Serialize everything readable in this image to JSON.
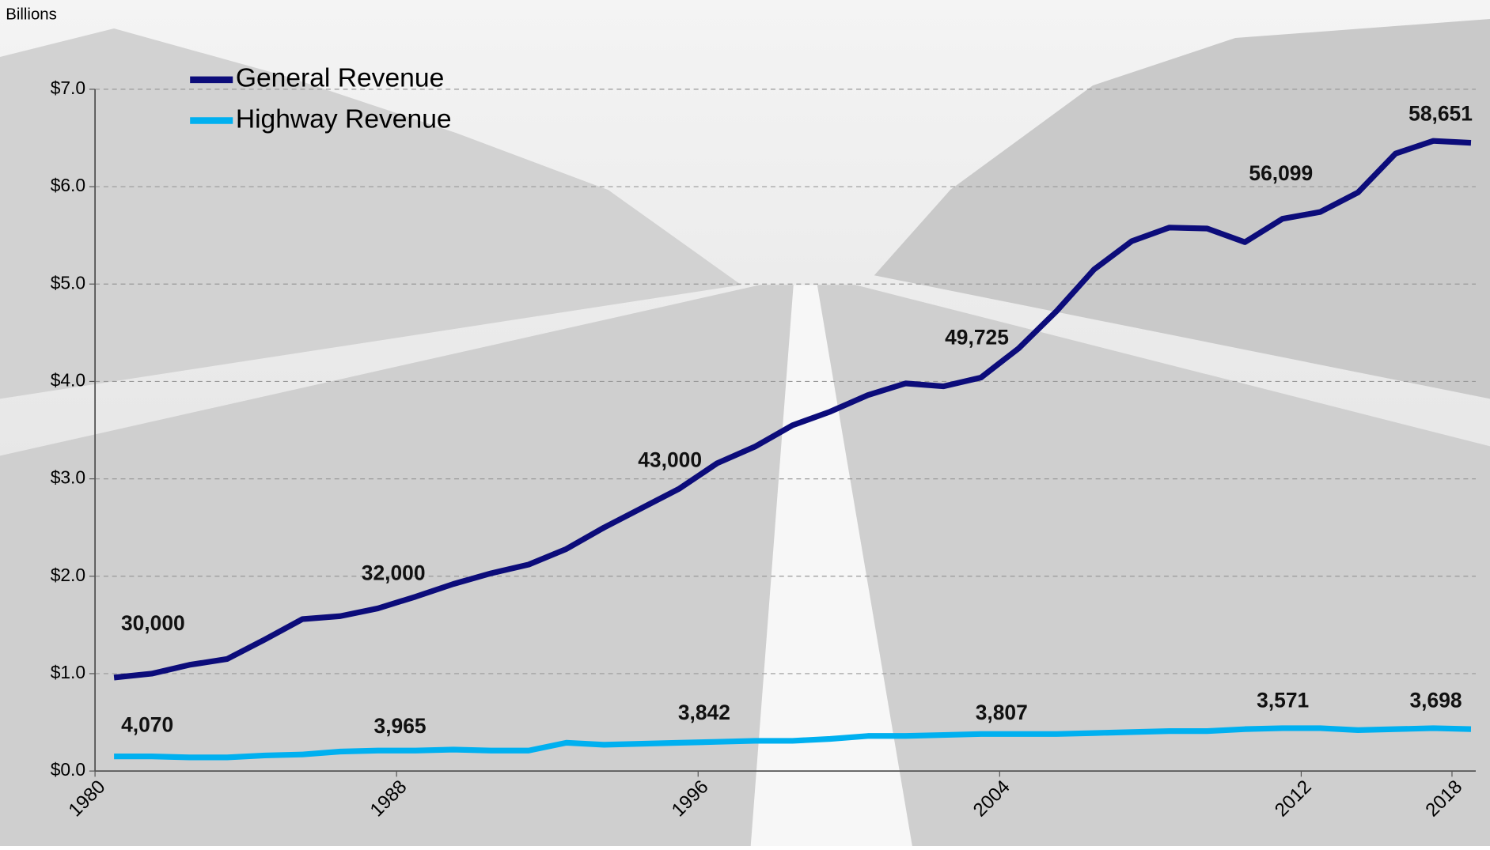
{
  "chart_data": {
    "type": "line",
    "y_axis_label": "Billions",
    "categories": [
      "1980",
      null,
      null,
      null,
      null,
      null,
      null,
      null,
      "1988",
      null,
      null,
      null,
      null,
      null,
      null,
      null,
      "1996",
      null,
      null,
      null,
      null,
      null,
      null,
      null,
      "2004",
      null,
      null,
      null,
      null,
      null,
      null,
      null,
      "2012",
      null,
      null,
      null,
      "2018"
    ],
    "series": [
      {
        "name": "General Revenue",
        "color": "#0c0c7a",
        "values": [
          0.96,
          1.0,
          1.09,
          1.15,
          1.35,
          1.56,
          1.59,
          1.67,
          1.79,
          1.92,
          2.03,
          2.12,
          2.28,
          2.5,
          2.7,
          2.9,
          3.16,
          3.33,
          3.55,
          3.69,
          3.86,
          3.98,
          3.95,
          4.04,
          4.34,
          4.72,
          5.15,
          5.44,
          5.58,
          5.57,
          5.43,
          5.67,
          5.74,
          5.94,
          6.34,
          6.47,
          6.45
        ]
      },
      {
        "name": "Highway Revenue",
        "color": "#00b0f0",
        "values": [
          0.15,
          0.15,
          0.14,
          0.14,
          0.16,
          0.17,
          0.2,
          0.21,
          0.21,
          0.22,
          0.21,
          0.21,
          0.29,
          0.27,
          0.28,
          0.29,
          0.3,
          0.31,
          0.31,
          0.33,
          0.36,
          0.36,
          0.37,
          0.38,
          0.38,
          0.38,
          0.39,
          0.4,
          0.41,
          0.41,
          0.43,
          0.44,
          0.44,
          0.42,
          0.43,
          0.44,
          0.43
        ]
      }
    ],
    "annotations": [
      "30,000",
      "32,000",
      "43,000",
      "49,725",
      "56,099",
      "58,651",
      "4,070",
      "3,965",
      "3,842",
      "3,807",
      "3,571",
      "3,698"
    ],
    "ylim": [
      0,
      7
    ],
    "yticks": [
      {
        "value": 0,
        "label": "$0.0"
      },
      {
        "value": 1,
        "label": "$1.0"
      },
      {
        "value": 2,
        "label": "$2.0"
      },
      {
        "value": 3,
        "label": "$3.0"
      },
      {
        "value": 4,
        "label": "$4.0"
      },
      {
        "value": 5,
        "label": "$5.0"
      },
      {
        "value": 6,
        "label": "$6.0"
      },
      {
        "value": 7,
        "label": "$7.0"
      }
    ],
    "grid": true,
    "legend": "top-left"
  }
}
